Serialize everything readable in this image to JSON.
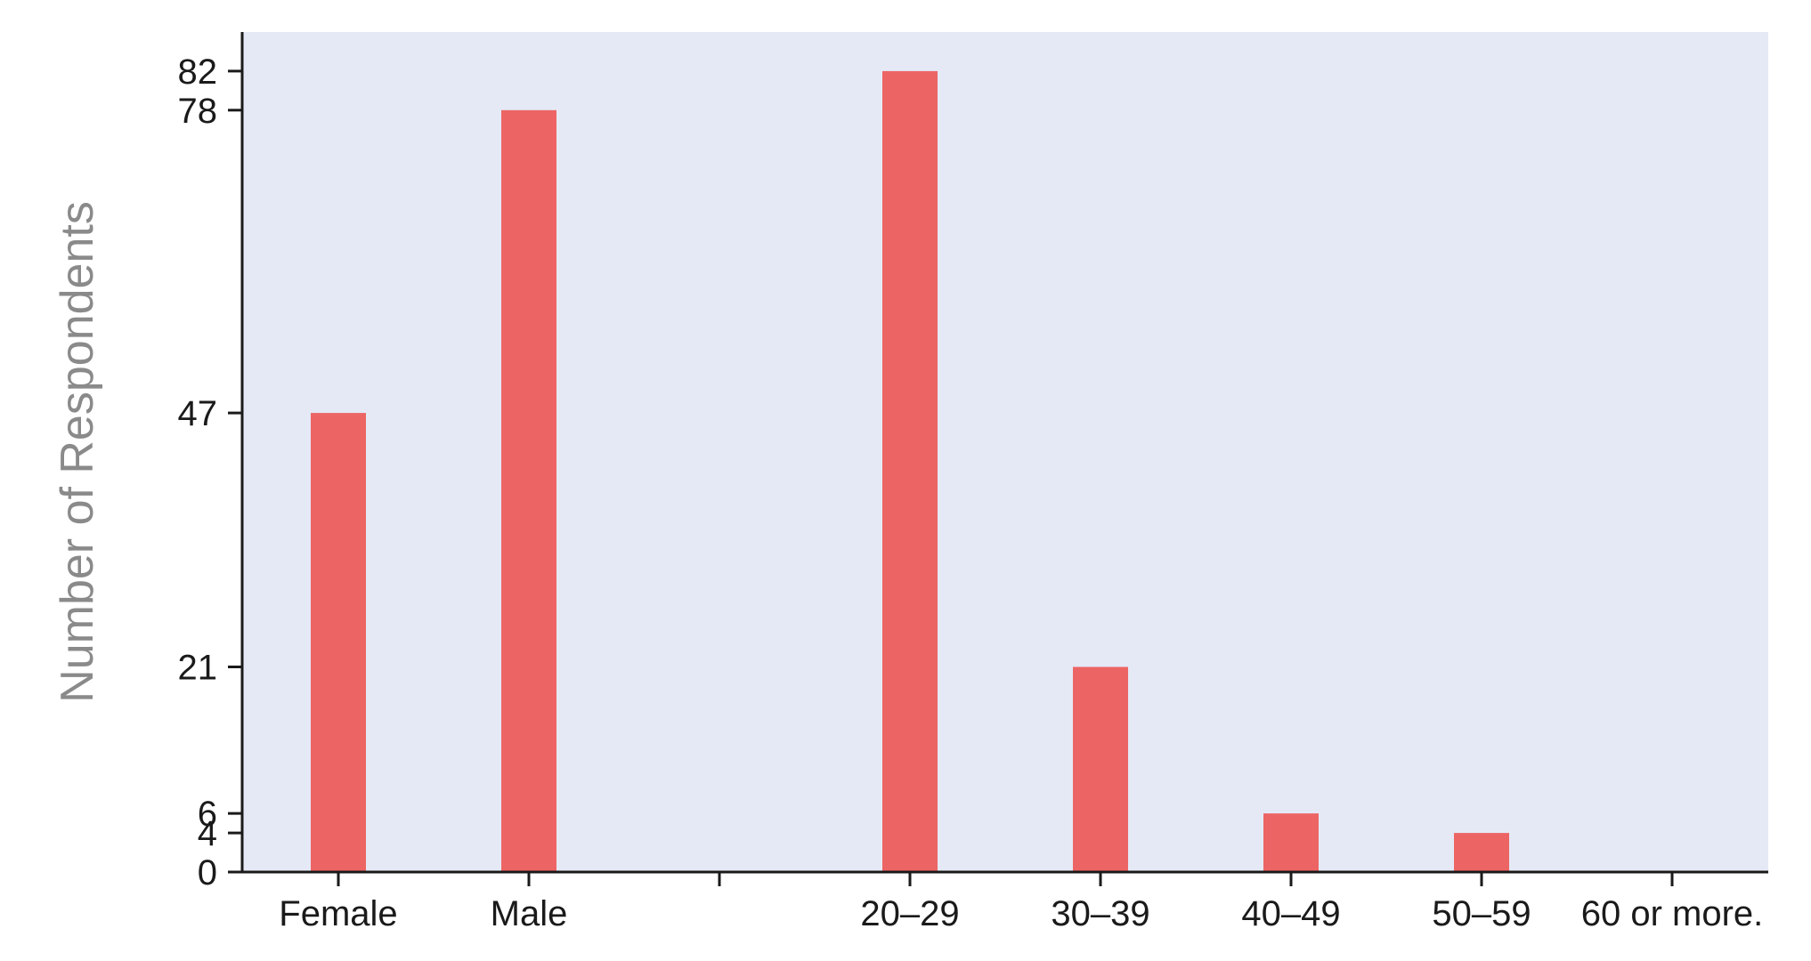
{
  "chart_data": {
    "type": "bar",
    "title": "",
    "xlabel": "",
    "ylabel": "Number of Respondents",
    "categories": [
      "Female",
      "Male",
      "",
      "20–29",
      "30–39",
      "40–49",
      "50–59",
      "60 or more."
    ],
    "values": [
      47,
      78,
      null,
      82,
      21,
      6,
      4,
      0
    ],
    "yticks": [
      0,
      4,
      6,
      21,
      47,
      78,
      82
    ],
    "ylim": [
      0,
      86
    ],
    "grid": false,
    "colors": {
      "bar": "#ec6564",
      "plot_background": "#e5e9f6",
      "axis": "#1a1a1a",
      "ylabel": "#8a8a8a"
    }
  }
}
